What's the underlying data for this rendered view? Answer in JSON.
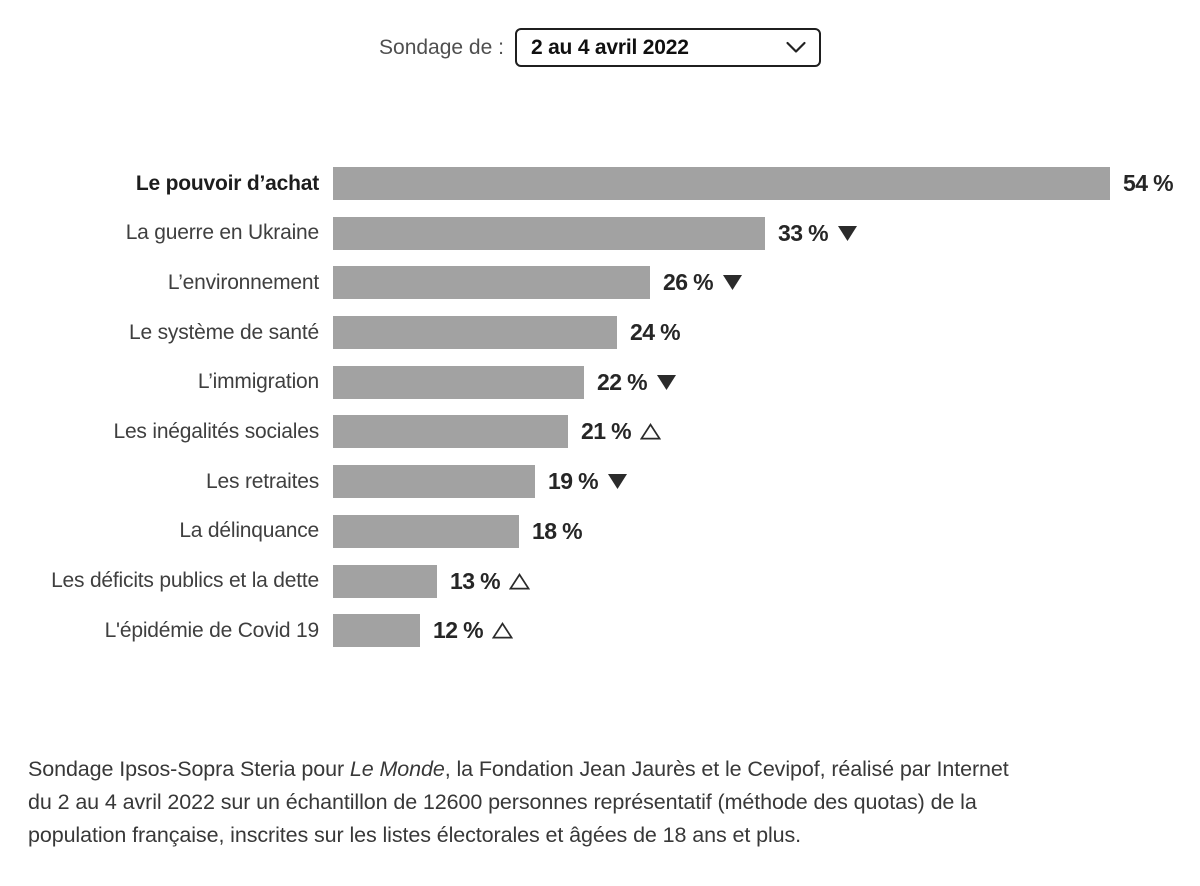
{
  "header": {
    "label": "Sondage de :",
    "selected_option": "2 au 4 avril 2022"
  },
  "chart_data": {
    "type": "bar",
    "orientation": "horizontal",
    "unit": "%",
    "value_suffix": " %",
    "bar_color": "#a2a2a2",
    "marker_color": "#2b2b2b",
    "axis": "none",
    "emphasized_category": "Le pouvoir d’achat",
    "categories": [
      "Le pouvoir d’achat",
      "La guerre en Ukraine",
      "L’environnement",
      "Le système de santé",
      "L’immigration",
      "Les inégalités sociales",
      "Les retraites",
      "La délinquance",
      "Les déficits publics et la dette",
      "L'épidémie de Covid 19"
    ],
    "values": [
      54,
      33,
      26,
      24,
      22,
      21,
      19,
      18,
      13,
      12
    ],
    "trends": [
      "none",
      "down",
      "down",
      "none",
      "down",
      "up",
      "down",
      "none",
      "up",
      "up"
    ]
  },
  "footer": {
    "line1_before": "Sondage Ipsos-Sopra Steria pour ",
    "line1_italic": "Le Monde",
    "line1_after": ", la Fondation Jean Jaurès et le Cevipof, réalisé par Internet",
    "line2": "du 2 au 4 avril 2022 sur un échantillon de 12600 personnes représentatif (méthode des quotas) de la",
    "line3": "population française, inscrites sur les listes électorales et âgées de 18 ans et plus."
  }
}
